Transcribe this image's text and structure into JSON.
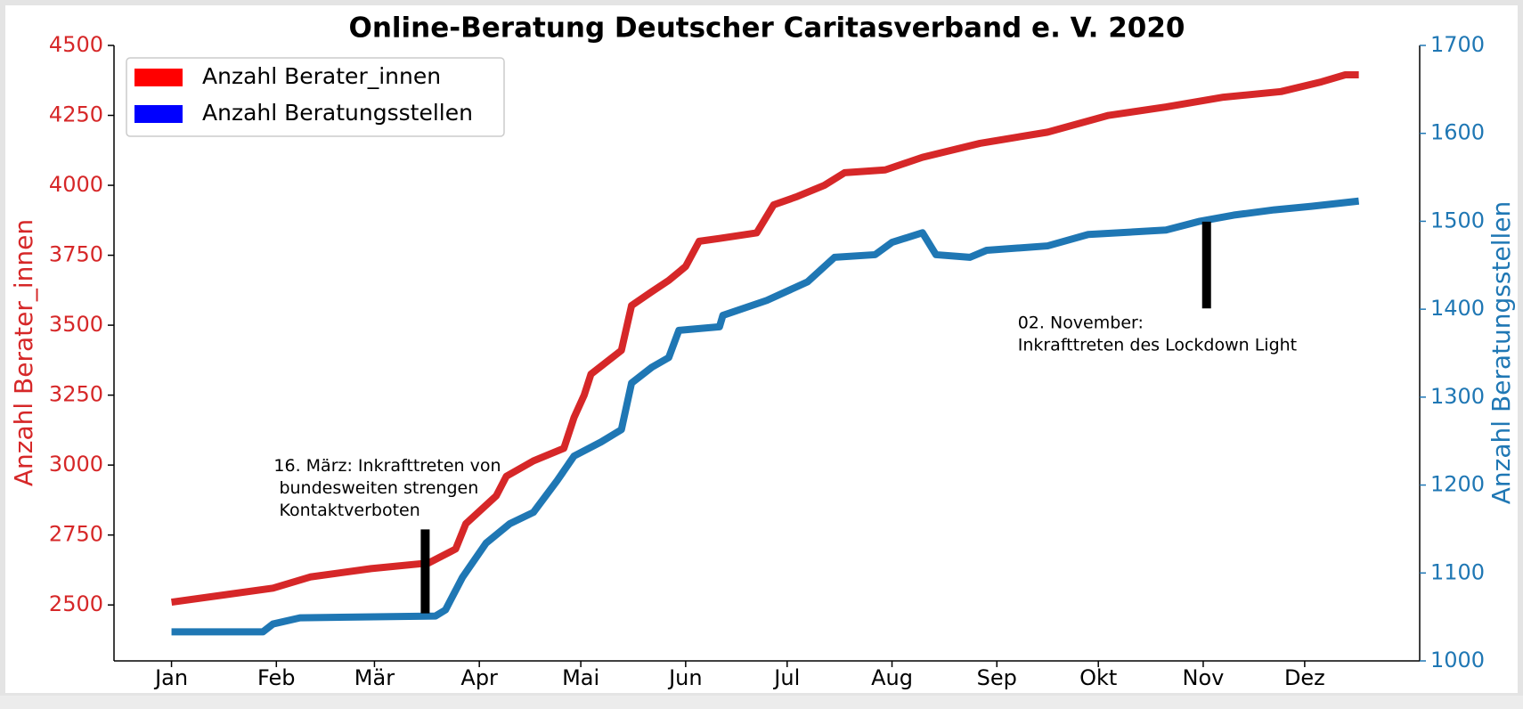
{
  "chart_data": {
    "type": "line",
    "title": "Online-Beratung Deutscher Caritasverband e. V. 2020",
    "ylabel": "Anzahl Berater_innen",
    "y2label": "Anzahl Beratungsstellen",
    "xlim": [
      -16,
      370
    ],
    "xticks": [
      {
        "value": 1,
        "label": "Jan"
      },
      {
        "value": 32,
        "label": "Feb"
      },
      {
        "value": 61,
        "label": "Mär"
      },
      {
        "value": 92,
        "label": "Apr"
      },
      {
        "value": 122,
        "label": "Mai"
      },
      {
        "value": 153,
        "label": "Jun"
      },
      {
        "value": 183,
        "label": "Jul"
      },
      {
        "value": 214,
        "label": "Aug"
      },
      {
        "value": 245,
        "label": "Sep"
      },
      {
        "value": 275,
        "label": "Okt"
      },
      {
        "value": 306,
        "label": "Nov"
      },
      {
        "value": 336,
        "label": "Dez"
      }
    ],
    "ylim": [
      2300,
      4500
    ],
    "yticks": [
      2500,
      2750,
      3000,
      3250,
      3500,
      3750,
      4000,
      4250,
      4500
    ],
    "y2lim": [
      1000,
      1700
    ],
    "y2ticks": [
      1000,
      1100,
      1200,
      1300,
      1400,
      1500,
      1600,
      1700
    ],
    "ytick_color": "#d62728",
    "y2tick_color": "#1f77b4",
    "legend": "upper left",
    "grid": false,
    "series": [
      {
        "name": "Anzahl Berater_innen",
        "color": "#d62728",
        "legend_color": "#ff0000",
        "axis": "y",
        "x": [
          1,
          31,
          42,
          60,
          77,
          85,
          88,
          97,
          100,
          108,
          117,
          120,
          123,
          125,
          134,
          137,
          143,
          148,
          153,
          157,
          163,
          174,
          179,
          186,
          194,
          200,
          212,
          223,
          240,
          260,
          278,
          295,
          312,
          329,
          341,
          348,
          352
        ],
        "values": [
          2510,
          2560,
          2600,
          2630,
          2650,
          2700,
          2790,
          2890,
          2960,
          3015,
          3060,
          3170,
          3250,
          3325,
          3410,
          3570,
          3620,
          3660,
          3710,
          3800,
          3810,
          3830,
          3930,
          3960,
          4000,
          4045,
          4055,
          4100,
          4150,
          4190,
          4250,
          4280,
          4315,
          4335,
          4370,
          4395,
          4395
        ]
      },
      {
        "name": "Anzahl Beratungsstellen",
        "color": "#1f77b4",
        "legend_color": "#0000ff",
        "axis": "y2",
        "x": [
          1,
          28,
          31,
          39,
          79,
          82,
          87,
          94,
          101,
          108,
          115,
          120,
          128,
          134,
          137,
          143,
          148,
          151,
          163,
          164,
          177,
          189,
          197,
          209,
          214,
          223,
          227,
          237,
          242,
          260,
          272,
          295,
          305,
          315,
          327,
          338,
          352
        ],
        "values": [
          1033,
          1033,
          1042,
          1049,
          1051,
          1058,
          1095,
          1134,
          1156,
          1169,
          1205,
          1233,
          1249,
          1263,
          1316,
          1334,
          1345,
          1376,
          1380,
          1393,
          1410,
          1431,
          1459,
          1462,
          1476,
          1487,
          1462,
          1459,
          1467,
          1472,
          1485,
          1490,
          1500,
          1507,
          1513,
          1517,
          1523
        ]
      }
    ],
    "annotations": [
      {
        "lines": [
          "16. März: Inkrafttreten von",
          " bundesweiten strengen",
          " Kontaktverboten"
        ],
        "x": 76,
        "y": [
          2470,
          2770
        ]
      },
      {
        "lines": [
          "02. November:",
          "Inkrafttreten des Lockdown Light"
        ],
        "x": 307,
        "y": [
          3560,
          3870
        ]
      }
    ]
  }
}
